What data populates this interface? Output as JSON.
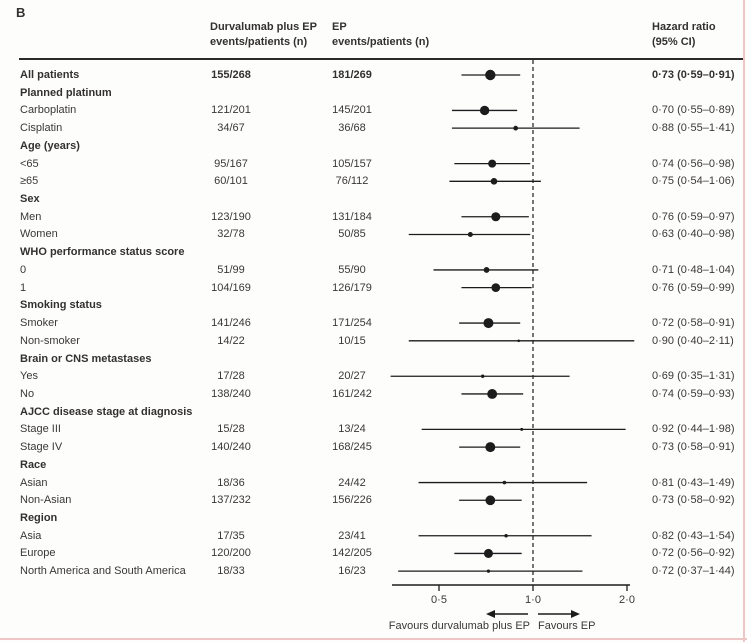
{
  "panel_label": "B",
  "columns": {
    "durvalumab": {
      "line1": "Durvalumab plus EP",
      "line2": "events/patients (n)"
    },
    "ep": {
      "line1": "EP",
      "line2": "events/patients (n)"
    },
    "hazard_ratio": {
      "line1": "Hazard ratio",
      "line2": "(95% CI)"
    }
  },
  "footer": {
    "favours_left": "Favours durvalumab plus EP",
    "favours_right": "Favours EP"
  },
  "colors": {
    "text": "#3a3836",
    "marker": "#1c1c1c",
    "ci_line": "#1c1c1c",
    "reference_line": "#1c1c1c",
    "page_edge": "#efc6c6"
  },
  "chart_data": {
    "type": "forest",
    "x_axis": {
      "scale": "log",
      "ticks": [
        0.5,
        1.0,
        2.0
      ],
      "tick_labels": [
        "0·5",
        "1·0",
        "2·0"
      ],
      "reference_line": 1.0
    },
    "rows": [
      {
        "label": "All patients",
        "kind": "overall",
        "durvalumab": "155/268",
        "ep": "181/269",
        "hr": 0.73,
        "lo": 0.59,
        "hi": 0.91,
        "hr_text": "0·73 (0·59–0·91)"
      },
      {
        "label": "Planned platinum",
        "kind": "category"
      },
      {
        "label": "Carboplatin",
        "kind": "item",
        "durvalumab": "121/201",
        "ep": "145/201",
        "hr": 0.7,
        "lo": 0.55,
        "hi": 0.89,
        "hr_text": "0·70 (0·55–0·89)"
      },
      {
        "label": "Cisplatin",
        "kind": "item",
        "durvalumab": "34/67",
        "ep": "36/68",
        "hr": 0.88,
        "lo": 0.55,
        "hi": 1.41,
        "hr_text": "0·88 (0·55–1·41)"
      },
      {
        "label": "Age (years)",
        "kind": "category"
      },
      {
        "label": "<65",
        "kind": "item",
        "durvalumab": "95/167",
        "ep": "105/157",
        "hr": 0.74,
        "lo": 0.56,
        "hi": 0.98,
        "hr_text": "0·74 (0·56–0·98)"
      },
      {
        "label": "≥65",
        "kind": "item",
        "durvalumab": "60/101",
        "ep": "76/112",
        "hr": 0.75,
        "lo": 0.54,
        "hi": 1.06,
        "hr_text": "0·75 (0·54–1·06)"
      },
      {
        "label": "Sex",
        "kind": "category"
      },
      {
        "label": "Men",
        "kind": "item",
        "durvalumab": "123/190",
        "ep": "131/184",
        "hr": 0.76,
        "lo": 0.59,
        "hi": 0.97,
        "hr_text": "0·76 (0·59–0·97)"
      },
      {
        "label": "Women",
        "kind": "item",
        "durvalumab": "32/78",
        "ep": "50/85",
        "hr": 0.63,
        "lo": 0.4,
        "hi": 0.98,
        "hr_text": "0·63 (0·40–0·98)"
      },
      {
        "label": "WHO performance status score",
        "kind": "category"
      },
      {
        "label": "0",
        "kind": "item",
        "durvalumab": "51/99",
        "ep": "55/90",
        "hr": 0.71,
        "lo": 0.48,
        "hi": 1.04,
        "hr_text": "0·71 (0·48–1·04)"
      },
      {
        "label": "1",
        "kind": "item",
        "durvalumab": "104/169",
        "ep": "126/179",
        "hr": 0.76,
        "lo": 0.59,
        "hi": 0.99,
        "hr_text": "0·76 (0·59–0·99)"
      },
      {
        "label": "Smoking status",
        "kind": "category"
      },
      {
        "label": "Smoker",
        "kind": "item",
        "durvalumab": "141/246",
        "ep": "171/254",
        "hr": 0.72,
        "lo": 0.58,
        "hi": 0.91,
        "hr_text": "0·72 (0·58–0·91)"
      },
      {
        "label": "Non-smoker",
        "kind": "item",
        "durvalumab": "14/22",
        "ep": "10/15",
        "hr": 0.9,
        "lo": 0.4,
        "hi": 2.11,
        "hr_text": "0·90 (0·40–2·11)"
      },
      {
        "label": "Brain or CNS metastases",
        "kind": "category"
      },
      {
        "label": "Yes",
        "kind": "item",
        "durvalumab": "17/28",
        "ep": "20/27",
        "hr": 0.69,
        "lo": 0.35,
        "hi": 1.31,
        "hr_text": "0·69 (0·35–1·31)"
      },
      {
        "label": "No",
        "kind": "item",
        "durvalumab": "138/240",
        "ep": "161/242",
        "hr": 0.74,
        "lo": 0.59,
        "hi": 0.93,
        "hr_text": "0·74 (0·59–0·93)"
      },
      {
        "label": "AJCC disease stage at diagnosis",
        "kind": "category"
      },
      {
        "label": "Stage III",
        "kind": "item",
        "durvalumab": "15/28",
        "ep": "13/24",
        "hr": 0.92,
        "lo": 0.44,
        "hi": 1.98,
        "hr_text": "0·92 (0·44–1·98)"
      },
      {
        "label": "Stage IV",
        "kind": "item",
        "durvalumab": "140/240",
        "ep": "168/245",
        "hr": 0.73,
        "lo": 0.58,
        "hi": 0.91,
        "hr_text": "0·73 (0·58–0·91)"
      },
      {
        "label": "Race",
        "kind": "category"
      },
      {
        "label": "Asian",
        "kind": "item",
        "durvalumab": "18/36",
        "ep": "24/42",
        "hr": 0.81,
        "lo": 0.43,
        "hi": 1.49,
        "hr_text": "0·81 (0·43–1·49)"
      },
      {
        "label": "Non-Asian",
        "kind": "item",
        "durvalumab": "137/232",
        "ep": "156/226",
        "hr": 0.73,
        "lo": 0.58,
        "hi": 0.92,
        "hr_text": "0·73 (0·58–0·92)"
      },
      {
        "label": "Region",
        "kind": "category"
      },
      {
        "label": "Asia",
        "kind": "item",
        "durvalumab": "17/35",
        "ep": "23/41",
        "hr": 0.82,
        "lo": 0.43,
        "hi": 1.54,
        "hr_text": "0·82 (0·43–1·54)"
      },
      {
        "label": "Europe",
        "kind": "item",
        "durvalumab": "120/200",
        "ep": "142/205",
        "hr": 0.72,
        "lo": 0.56,
        "hi": 0.92,
        "hr_text": "0·72 (0·56–0·92)"
      },
      {
        "label": "North America and South America",
        "kind": "item",
        "durvalumab": "18/33",
        "ep": "16/23",
        "hr": 0.72,
        "lo": 0.37,
        "hi": 1.44,
        "hr_text": "0·72 (0·37–1·44)"
      }
    ]
  }
}
